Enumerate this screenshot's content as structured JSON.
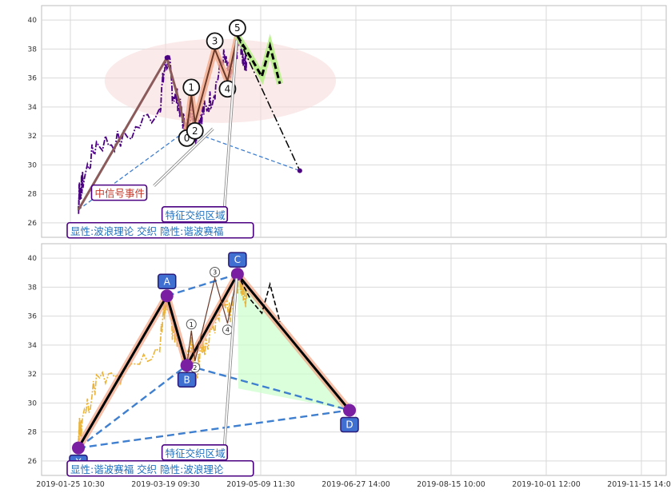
{
  "chart_data": [
    {
      "type": "line",
      "title": "",
      "ylim": [
        25,
        41
      ],
      "yticks": [
        26,
        28,
        30,
        32,
        34,
        36,
        38,
        40
      ],
      "x_ticks": [
        "2019-01-25 10:30",
        "2019-03-19 09:30",
        "2019-05-09 11:30",
        "2019-06-27 14:00",
        "2019-08-15 10:00",
        "2019-10-01 12:00",
        "2019-11-15 14:00"
      ],
      "grid": true,
      "price_series": {
        "color": "#4b0082",
        "style": "dash-dot"
      },
      "outline_points": [
        [
          0.0,
          26.9
        ],
        [
          0.1,
          28.4
        ],
        [
          0.2,
          28.1
        ],
        [
          0.5,
          28.9
        ],
        [
          2.0,
          31.5
        ],
        [
          5.0,
          31.7
        ],
        [
          9.0,
          34.0
        ],
        [
          9.5,
          36.5
        ],
        [
          10.0,
          37.4
        ],
        [
          10.4,
          35.0
        ],
        [
          11.0,
          34.5
        ],
        [
          11.5,
          33.2
        ],
        [
          12.0,
          32.4
        ],
        [
          12.5,
          34.2
        ],
        [
          13.0,
          31.8
        ],
        [
          13.5,
          33.5
        ],
        [
          14.0,
          33.8
        ],
        [
          15.0,
          35.0
        ],
        [
          16.0,
          37.5
        ],
        [
          16.8,
          36.1
        ],
        [
          17.5,
          37.9
        ],
        [
          17.9,
          38.7
        ],
        [
          18.2,
          37.4
        ],
        [
          18.6,
          37.2
        ]
      ],
      "cycle_line": {
        "points": [
          [
            0.0,
            26.9
          ],
          [
            9.8,
            37.4
          ],
          [
            11.1,
            34.5
          ],
          [
            11.5,
            33.3
          ],
          [
            12.0,
            32.4
          ]
        ],
        "color": "#8b5a5a"
      },
      "waves": [
        {
          "label": "0",
          "x": 12.0,
          "y": 32.4
        },
        {
          "label": "1",
          "x": 12.5,
          "y": 34.8
        },
        {
          "label": "2",
          "x": 12.9,
          "y": 32.9
        },
        {
          "label": "3",
          "x": 15.1,
          "y": 38.0
        },
        {
          "label": "4",
          "x": 16.5,
          "y": 35.8
        },
        {
          "label": "5",
          "x": 17.6,
          "y": 38.9
        }
      ],
      "projection": {
        "points": [
          [
            17.6,
            38.9
          ],
          [
            19.1,
            37.4
          ],
          [
            20.3,
            36.1
          ],
          [
            21.2,
            38.2
          ],
          [
            22.3,
            35.6
          ]
        ],
        "color": "#000000",
        "highlight": "#b8f08a"
      },
      "trend_line": {
        "from": [
          17.6,
          38.9
        ],
        "to": [
          24.5,
          29.6
        ],
        "color": "#000000",
        "style": "dash-dot"
      },
      "dashed_lines": [
        {
          "from": [
            0.0,
            26.9
          ],
          "to": [
            12.0,
            32.4
          ]
        },
        {
          "from": [
            12.0,
            32.4
          ],
          "to": [
            24.5,
            29.6
          ]
        }
      ],
      "endpoints": [
        {
          "x": 9.8,
          "y": 37.4
        },
        {
          "x": 24.5,
          "y": 29.6
        }
      ],
      "ellipse": {
        "cx": 15.7,
        "cy": 35.8,
        "rx": 4.0,
        "ry": 2.9,
        "color": "#f7d8d8"
      },
      "annotations": [
        {
          "text": "中信号事件",
          "color": "#c0392b",
          "box_x": 7.3,
          "box_y": 28.0,
          "arrow_to": [
            14.9,
            32.5
          ]
        },
        {
          "text": "特征交织区域",
          "color": "#1f6fbf",
          "box_x": 15.1,
          "box_y": 26.5,
          "arrow_to": [
            17.5,
            38.6
          ]
        },
        {
          "text": "显性:波浪理论 交织 隐性:谐波赛福",
          "color": "#1f6fbf",
          "box_x": 0.0,
          "box_y": 25.4
        }
      ]
    },
    {
      "type": "line",
      "title": "",
      "ylim": [
        25,
        41
      ],
      "yticks": [
        26,
        28,
        30,
        32,
        34,
        36,
        38,
        40
      ],
      "x_ticks": [
        "2019-01-25 10:30",
        "2019-03-19 09:30",
        "2019-05-09 11:30",
        "2019-06-27 14:00",
        "2019-08-15 10:00",
        "2019-10-01 12:00",
        "2019-11-15 14:00"
      ],
      "grid": true,
      "price_series": {
        "color": "#eab43b",
        "style": "dash-dot"
      },
      "harmonic_points": [
        {
          "label": "X",
          "x": 0.0,
          "y": 26.9
        },
        {
          "label": "A",
          "x": 9.8,
          "y": 37.4
        },
        {
          "label": "B",
          "x": 12.0,
          "y": 32.6
        },
        {
          "label": "C",
          "x": 17.6,
          "y": 38.9
        },
        {
          "label": "D",
          "x": 30.0,
          "y": 29.5
        }
      ],
      "waves": [
        {
          "label": "1",
          "x": 12.5,
          "y": 35.0
        },
        {
          "label": "2",
          "x": 12.9,
          "y": 32.9
        },
        {
          "label": "3",
          "x": 15.1,
          "y": 38.6
        },
        {
          "label": "4",
          "x": 16.5,
          "y": 35.5
        }
      ],
      "projection": {
        "points": [
          [
            17.6,
            38.9
          ],
          [
            19.1,
            37.1
          ],
          [
            20.3,
            36.2
          ],
          [
            21.2,
            38.2
          ],
          [
            22.3,
            35.6
          ]
        ],
        "color": "#000000"
      },
      "shaded_region": {
        "color": "#ccffcc"
      },
      "annotations": [
        {
          "text": "特征交织区域",
          "color": "#1f6fbf",
          "box_x": 15.1,
          "box_y": 26.5,
          "arrow_to": [
            17.5,
            38.6
          ]
        },
        {
          "text": "显性:谐波赛福 交织 隐性:波浪理论",
          "color": "#1f6fbf",
          "box_x": 0.0,
          "box_y": 25.4
        }
      ]
    }
  ]
}
